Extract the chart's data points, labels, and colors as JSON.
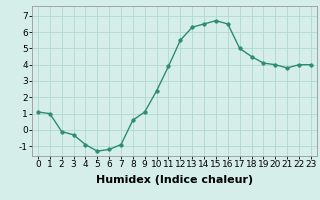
{
  "x": [
    0,
    1,
    2,
    3,
    4,
    5,
    6,
    7,
    8,
    9,
    10,
    11,
    12,
    13,
    14,
    15,
    16,
    17,
    18,
    19,
    20,
    21,
    22,
    23
  ],
  "y": [
    1.1,
    1.0,
    -0.1,
    -0.3,
    -0.9,
    -1.3,
    -1.2,
    -0.9,
    0.6,
    1.1,
    2.4,
    3.9,
    5.5,
    6.3,
    6.5,
    6.7,
    6.5,
    5.0,
    4.5,
    4.1,
    4.0,
    3.8,
    4.0,
    4.0
  ],
  "line_color": "#2e8b73",
  "marker_color": "#2e8b73",
  "bg_color": "#d6eeea",
  "grid_color": "#b0d8d0",
  "xlabel": "Humidex (Indice chaleur)",
  "xlim": [
    -0.5,
    23.5
  ],
  "ylim": [
    -1.6,
    7.6
  ],
  "yticks": [
    -1,
    0,
    1,
    2,
    3,
    4,
    5,
    6,
    7
  ],
  "xticks": [
    0,
    1,
    2,
    3,
    4,
    5,
    6,
    7,
    8,
    9,
    10,
    11,
    12,
    13,
    14,
    15,
    16,
    17,
    18,
    19,
    20,
    21,
    22,
    23
  ],
  "tick_fontsize": 6.5,
  "xlabel_fontsize": 8,
  "marker_size": 2.5,
  "line_width": 1.0
}
